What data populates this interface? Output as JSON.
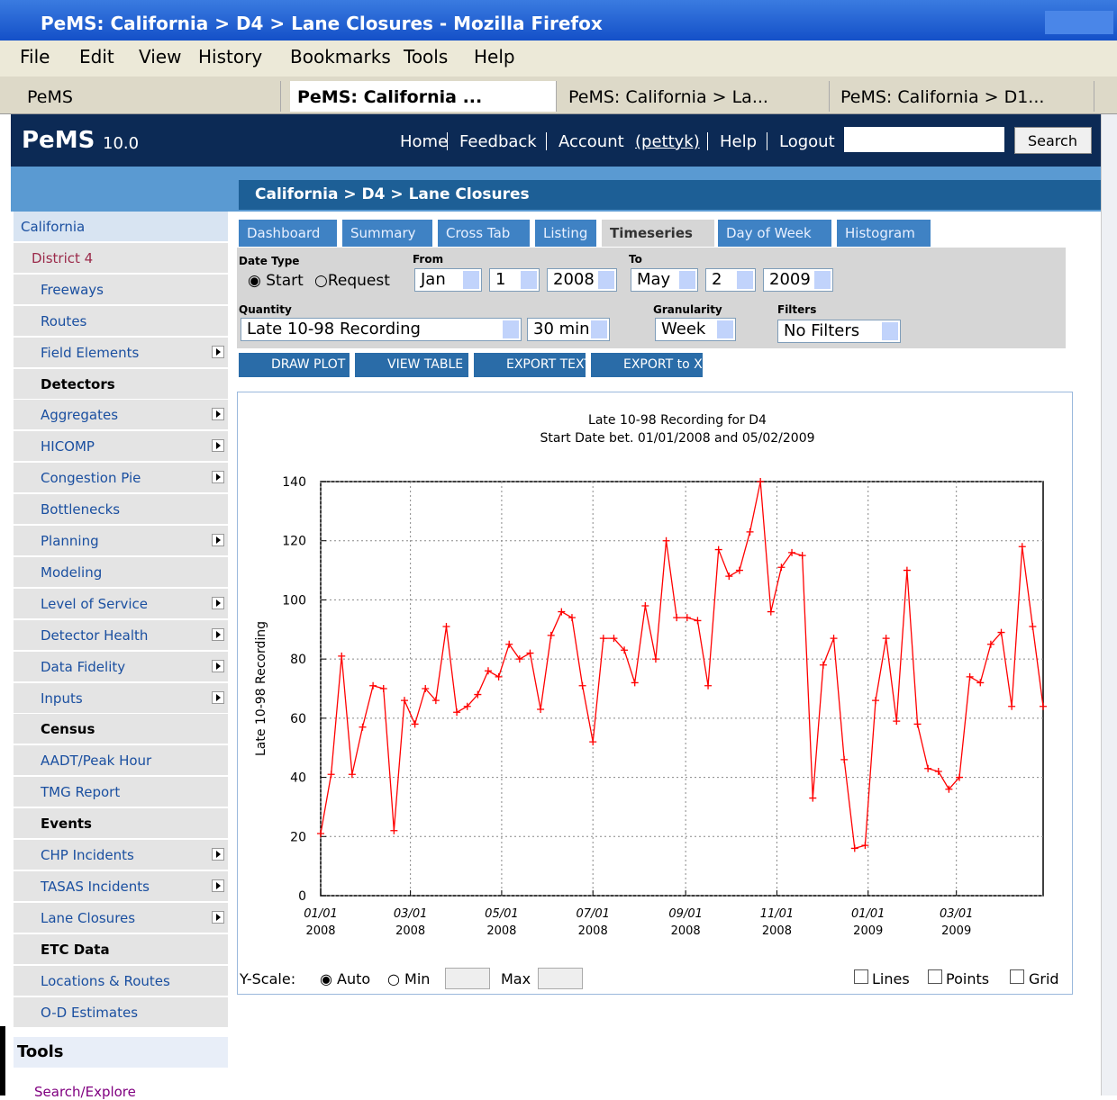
{
  "window": {
    "title": "PeMS: California > D4 > Lane Closures - Mozilla Firefox",
    "menu": [
      "File",
      "Edit",
      "View",
      "History",
      "Bookmarks",
      "Tools",
      "Help"
    ],
    "tabs": [
      "PeMS",
      "PeMS: California ...",
      "PeMS: California > La...",
      "PeMS: California > D1..."
    ]
  },
  "header": {
    "logo": "PeMS",
    "version": "10.0",
    "nav": [
      "Home",
      "Feedback",
      "Account",
      "Help",
      "Logout"
    ],
    "account_user": "(pettyk)",
    "search_button": "Search"
  },
  "breadcrumb": "California > D4 > Lane Closures",
  "sidebar": {
    "items": [
      {
        "label": "California",
        "kind": "top"
      },
      {
        "label": "District 4",
        "kind": "district"
      },
      {
        "label": "Freeways",
        "kind": "link"
      },
      {
        "label": "Routes",
        "kind": "link"
      },
      {
        "label": "Field Elements",
        "kind": "link",
        "arrow": true
      },
      {
        "label": "Detectors",
        "kind": "header"
      },
      {
        "label": "Aggregates",
        "kind": "link",
        "arrow": true
      },
      {
        "label": "HICOMP",
        "kind": "link",
        "arrow": true
      },
      {
        "label": "Congestion Pie",
        "kind": "link",
        "arrow": true
      },
      {
        "label": "Bottlenecks",
        "kind": "link"
      },
      {
        "label": "Planning",
        "kind": "link",
        "arrow": true
      },
      {
        "label": "Modeling",
        "kind": "link"
      },
      {
        "label": "Level of Service",
        "kind": "link",
        "arrow": true
      },
      {
        "label": "Detector Health",
        "kind": "link",
        "arrow": true
      },
      {
        "label": "Data Fidelity",
        "kind": "link",
        "arrow": true
      },
      {
        "label": "Inputs",
        "kind": "link",
        "arrow": true
      },
      {
        "label": "Census",
        "kind": "header"
      },
      {
        "label": "AADT/Peak Hour",
        "kind": "link"
      },
      {
        "label": "TMG Report",
        "kind": "link"
      },
      {
        "label": "Events",
        "kind": "header"
      },
      {
        "label": "CHP Incidents",
        "kind": "link",
        "arrow": true
      },
      {
        "label": "TASAS Incidents",
        "kind": "link",
        "arrow": true
      },
      {
        "label": "Lane Closures",
        "kind": "link",
        "arrow": true
      },
      {
        "label": "ETC Data",
        "kind": "header"
      },
      {
        "label": "Locations & Routes",
        "kind": "link"
      },
      {
        "label": "O-D Estimates",
        "kind": "link"
      }
    ],
    "tools": "Tools",
    "tools_link": "Search/Explore"
  },
  "tabs": [
    "Dashboard",
    "Summary",
    "Cross Tab",
    "Listing",
    "Timeseries",
    "Day of Week",
    "Histogram"
  ],
  "form": {
    "date_type": "Date Type",
    "start": "Start",
    "request": "Request",
    "from": "From",
    "from_month": "Jan",
    "from_day": "1",
    "from_year": "2008",
    "to": "To",
    "to_month": "May",
    "to_day": "2",
    "to_year": "2009",
    "quantity": "Quantity",
    "quantity_value": "Late 10-98 Recording",
    "interval": "30 min",
    "granularity": "Granularity",
    "granularity_value": "Week",
    "filters": "Filters",
    "filters_value": "No Filters"
  },
  "buttons": [
    "DRAW PLOT",
    "VIEW TABLE",
    "EXPORT TEXT",
    "EXPORT to XLS"
  ],
  "chart_data": {
    "type": "line",
    "title": "Late 10-98 Recording for D4",
    "subtitle": "Start Date bet. 01/01/2008 and 05/02/2009",
    "y_label": "Late 10-98 Recording",
    "color": "#ff0000",
    "grid": true,
    "markers": "plus",
    "x": [
      "2008-01-01",
      "2008-01-08",
      "2008-01-15",
      "2008-01-22",
      "2008-01-29",
      "2008-02-05",
      "2008-02-12",
      "2008-02-19",
      "2008-02-26",
      "2008-03-04",
      "2008-03-11",
      "2008-03-18",
      "2008-03-25",
      "2008-04-01",
      "2008-04-08",
      "2008-04-15",
      "2008-04-22",
      "2008-04-29",
      "2008-05-06",
      "2008-05-13",
      "2008-05-20",
      "2008-05-27",
      "2008-06-03",
      "2008-06-10",
      "2008-06-17",
      "2008-06-24",
      "2008-07-01",
      "2008-07-08",
      "2008-07-15",
      "2008-07-22",
      "2008-07-29",
      "2008-08-05",
      "2008-08-12",
      "2008-08-19",
      "2008-08-26",
      "2008-09-02",
      "2008-09-09",
      "2008-09-16",
      "2008-09-23",
      "2008-09-30",
      "2008-10-07",
      "2008-10-14",
      "2008-10-21",
      "2008-10-28",
      "2008-11-04",
      "2008-11-11",
      "2008-11-18",
      "2008-11-25",
      "2008-12-02",
      "2008-12-09",
      "2008-12-16",
      "2008-12-23",
      "2008-12-30",
      "2009-01-06",
      "2009-01-13",
      "2009-01-20",
      "2009-01-27",
      "2009-02-03",
      "2009-02-10",
      "2009-02-17",
      "2009-02-24",
      "2009-03-03",
      "2009-03-10",
      "2009-03-17",
      "2009-03-24",
      "2009-03-31",
      "2009-04-07",
      "2009-04-14",
      "2009-04-21",
      "2009-04-28"
    ],
    "values": [
      21,
      41,
      81,
      41,
      57,
      71,
      70,
      22,
      66,
      58,
      70,
      66,
      91,
      62,
      64,
      68,
      76,
      74,
      85,
      80,
      82,
      63,
      88,
      96,
      94,
      71,
      52,
      87,
      87,
      83,
      72,
      98,
      80,
      120,
      94,
      94,
      93,
      71,
      117,
      108,
      110,
      123,
      140,
      96,
      111,
      116,
      115,
      33,
      78,
      87,
      46,
      16,
      17,
      66,
      87,
      59,
      110,
      58,
      43,
      42,
      36,
      40,
      74,
      72,
      85,
      89,
      64,
      118,
      91,
      64
    ],
    "xlim": [
      "2008-01-01",
      "2009-04-28"
    ],
    "xticks": [
      {
        "value": "2008-01-01",
        "label": "01/01",
        "year": "2008"
      },
      {
        "value": "2008-03-01",
        "label": "03/01",
        "year": "2008"
      },
      {
        "value": "2008-05-01",
        "label": "05/01",
        "year": "2008"
      },
      {
        "value": "2008-07-01",
        "label": "07/01",
        "year": "2008"
      },
      {
        "value": "2008-09-01",
        "label": "09/01",
        "year": "2008"
      },
      {
        "value": "2008-11-01",
        "label": "11/01",
        "year": "2008"
      },
      {
        "value": "2009-01-01",
        "label": "01/01",
        "year": "2009"
      },
      {
        "value": "2009-03-01",
        "label": "03/01",
        "year": "2009"
      }
    ],
    "ylim": [
      0,
      140
    ],
    "yticks": [
      0,
      20,
      40,
      60,
      80,
      100,
      120,
      140
    ]
  },
  "controls": {
    "y_scale": "Y-Scale:",
    "auto": "Auto",
    "min": "Min",
    "max": "Max",
    "lines": "Lines",
    "points": "Points",
    "grid": "Grid"
  }
}
